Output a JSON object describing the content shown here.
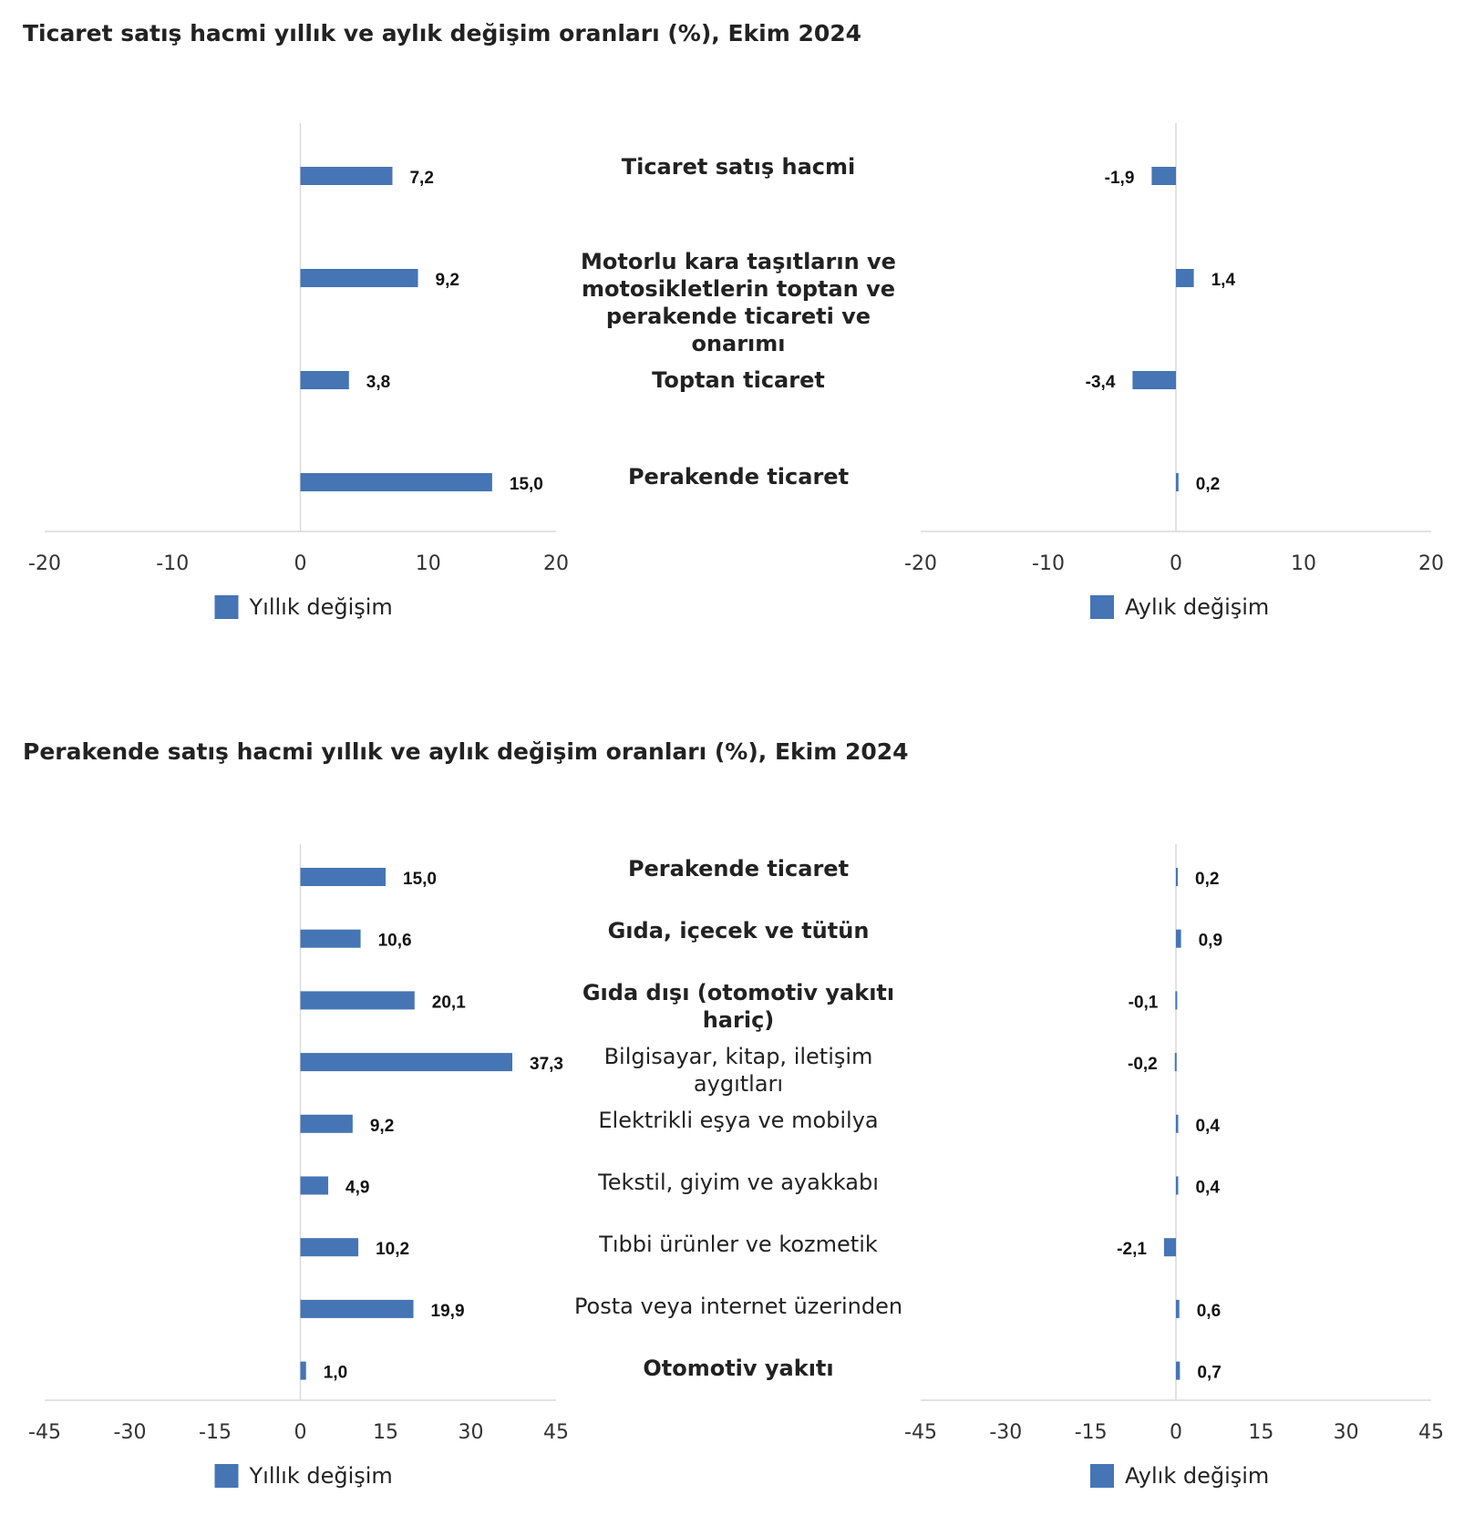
{
  "colors": {
    "bar": "#4575b4",
    "axis": "#d9d9d9",
    "text": "#222222"
  },
  "chart_data": [
    {
      "type": "bar",
      "orientation": "horizontal",
      "title": "Ticaret satış hacmi yıllık ve aylık değişim oranları (%), Ekim 2024",
      "categories": [
        "Ticaret satış hacmi",
        "Motorlu kara taşıtların ve motosikletlerin toptan ve perakende ticareti ve onarımı",
        "Toptan ticaret",
        "Perakende ticaret"
      ],
      "category_bold": [
        true,
        true,
        true,
        true
      ],
      "series": [
        {
          "name": "Yıllık değişim",
          "values": [
            7.2,
            9.2,
            3.8,
            15.0
          ],
          "labels": [
            "7,2",
            "9,2",
            "3,8",
            "15,0"
          ]
        },
        {
          "name": "Aylık değişim",
          "values": [
            -1.9,
            1.4,
            -3.4,
            0.2
          ],
          "labels": [
            "-1,9",
            "1,4",
            "-3,4",
            "0,2"
          ]
        }
      ],
      "xlim": [
        -20,
        20
      ],
      "ticks": [
        "-20",
        "-10",
        "0",
        "10",
        "20"
      ]
    },
    {
      "type": "bar",
      "orientation": "horizontal",
      "title": "Perakende satış hacmi yıllık ve aylık değişim oranları (%), Ekim 2024",
      "categories": [
        "Perakende ticaret",
        "Gıda, içecek ve tütün",
        "Gıda dışı (otomotiv yakıtı hariç)",
        "Bilgisayar, kitap, iletişim aygıtları",
        "Elektrikli eşya ve mobilya",
        "Tekstil, giyim ve ayakkabı",
        "Tıbbi ürünler ve kozmetik",
        "Posta veya internet üzerinden",
        "Otomotiv yakıtı"
      ],
      "category_bold": [
        true,
        true,
        true,
        false,
        false,
        false,
        false,
        false,
        true
      ],
      "series": [
        {
          "name": "Yıllık değişim",
          "values": [
            15.0,
            10.6,
            20.1,
            37.3,
            9.2,
            4.9,
            10.2,
            19.9,
            1.0
          ],
          "labels": [
            "15,0",
            "10,6",
            "20,1",
            "37,3",
            "9,2",
            "4,9",
            "10,2",
            "19,9",
            "1,0"
          ]
        },
        {
          "name": "Aylık değişim",
          "values": [
            0.2,
            0.9,
            -0.1,
            -0.2,
            0.4,
            0.4,
            -2.1,
            0.6,
            0.7
          ],
          "labels": [
            "0,2",
            "0,9",
            "-0,1",
            "-0,2",
            "0,4",
            "0,4",
            "-2,1",
            "0,6",
            "0,7"
          ]
        }
      ],
      "xlim": [
        -45,
        45
      ],
      "ticks": [
        "-45",
        "-30",
        "-15",
        "0",
        "15",
        "30",
        "45"
      ]
    }
  ]
}
